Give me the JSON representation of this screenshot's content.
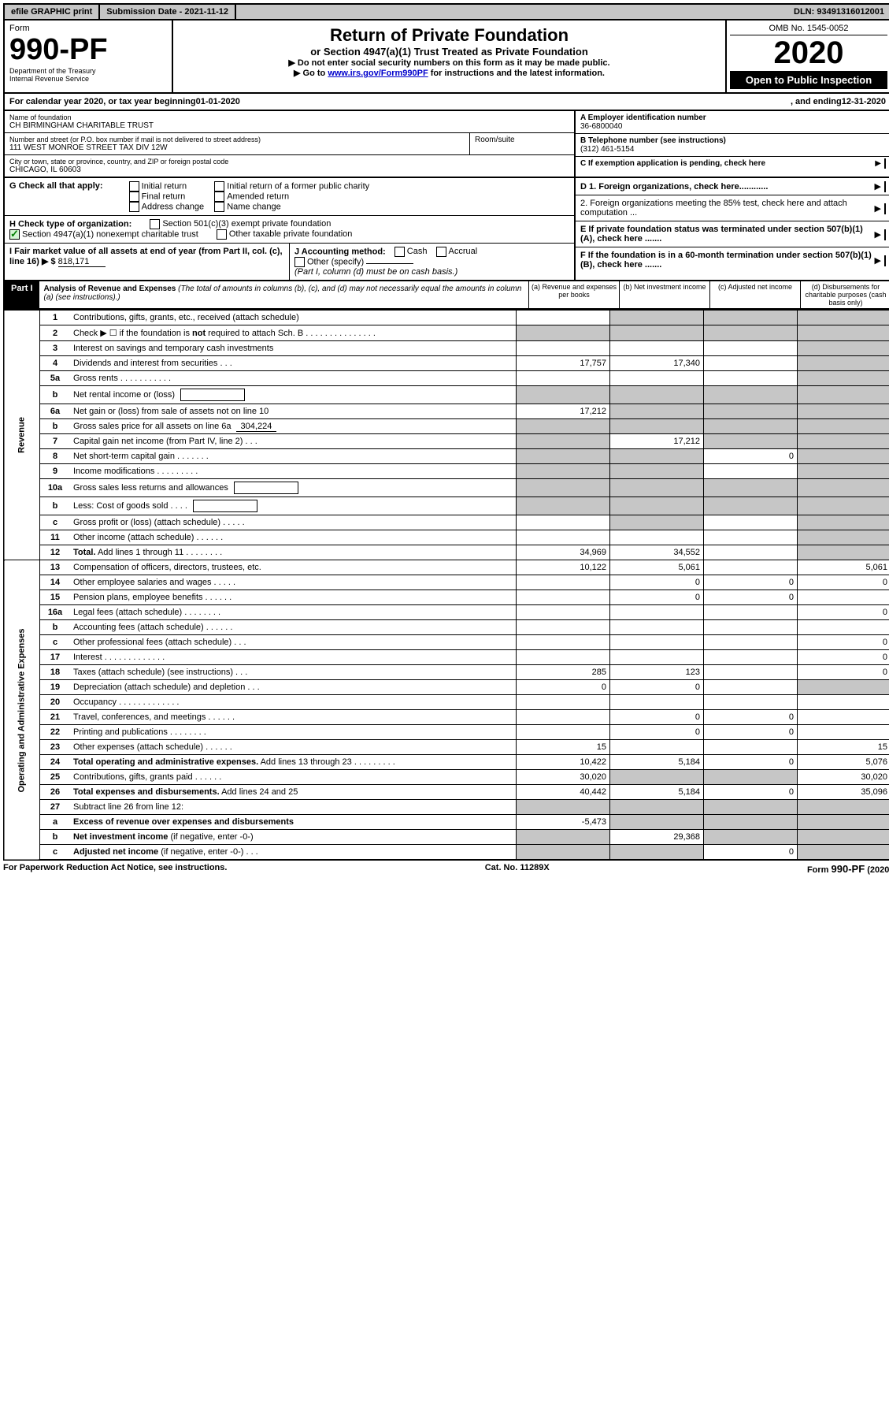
{
  "topbar": {
    "efile": "efile GRAPHIC print",
    "subdate_label": "Submission Date - ",
    "subdate": "2021-11-12",
    "dln_label": "DLN: ",
    "dln": "93491316012001"
  },
  "header": {
    "form_label": "Form",
    "form_number": "990-PF",
    "dept": "Department of the Treasury",
    "irs": "Internal Revenue Service",
    "title": "Return of Private Foundation",
    "subtitle": "or Section 4947(a)(1) Trust Treated as Private Foundation",
    "note1": "▶ Do not enter social security numbers on this form as it may be made public.",
    "note2_pre": "▶ Go to ",
    "note2_link": "www.irs.gov/Form990PF",
    "note2_post": " for instructions and the latest information.",
    "omb": "OMB No. 1545-0052",
    "year": "2020",
    "inspection": "Open to Public Inspection"
  },
  "calyear": {
    "text_pre": "For calendar year 2020, or tax year beginning ",
    "begin": "01-01-2020",
    "text_mid": ", and ending ",
    "end": "12-31-2020"
  },
  "info": {
    "name_label": "Name of foundation",
    "name": "CH BIRMINGHAM CHARITABLE TRUST",
    "addr_label": "Number and street (or P.O. box number if mail is not delivered to street address)",
    "addr": "111 WEST MONROE STREET TAX DIV 12W",
    "room_label": "Room/suite",
    "city_label": "City or town, state or province, country, and ZIP or foreign postal code",
    "city": "CHICAGO, IL  60603",
    "ein_label": "A Employer identification number",
    "ein": "36-6800040",
    "phone_label": "B Telephone number (see instructions)",
    "phone": "(312) 461-5154",
    "c_label": "C If exemption application is pending, check here",
    "d1_label": "D 1. Foreign organizations, check here............",
    "d2_label": "2. Foreign organizations meeting the 85% test, check here and attach computation ...",
    "e_label": "E  If private foundation status was terminated under section 507(b)(1)(A), check here .......",
    "f_label": "F  If the foundation is in a 60-month termination under section 507(b)(1)(B), check here ......."
  },
  "checks": {
    "g_label": "G Check all that apply:",
    "g_items": [
      "Initial return",
      "Final return",
      "Address change",
      "Initial return of a former public charity",
      "Amended return",
      "Name change"
    ],
    "h_label": "H Check type of organization:",
    "h_501c3": "Section 501(c)(3) exempt private foundation",
    "h_4947": "Section 4947(a)(1) nonexempt charitable trust",
    "h_other_tax": "Other taxable private foundation",
    "i_label": "I Fair market value of all assets at end of year (from Part II, col. (c), line 16) ▶ $",
    "i_value": "818,171",
    "j_label": "J Accounting method:",
    "j_cash": "Cash",
    "j_accrual": "Accrual",
    "j_other": "Other (specify)",
    "j_note": "(Part I, column (d) must be on cash basis.)"
  },
  "part1": {
    "label": "Part I",
    "title": "Analysis of Revenue and Expenses",
    "note": " (The total of amounts in columns (b), (c), and (d) may not necessarily equal the amounts in column (a) (see instructions).)",
    "col_a": "(a)  Revenue and expenses per books",
    "col_b": "(b)  Net investment income",
    "col_c": "(c)  Adjusted net income",
    "col_d": "(d)  Disbursements for charitable purposes (cash basis only)"
  },
  "side": {
    "revenue": "Revenue",
    "expenses": "Operating and Administrative Expenses"
  },
  "rows": [
    {
      "n": "1",
      "d": "shade",
      "a": "",
      "b": "shade",
      "c": "shade"
    },
    {
      "n": "2",
      "d": "shade",
      "a": "shade",
      "b": "shade",
      "c": "shade"
    },
    {
      "n": "3",
      "d": "shade",
      "a": "",
      "b": "",
      "c": ""
    },
    {
      "n": "4",
      "d": "shade",
      "a": "17,757",
      "b": "17,340",
      "c": ""
    },
    {
      "n": "5a",
      "d": "shade",
      "a": "",
      "b": "",
      "c": ""
    },
    {
      "n": "b",
      "d": "shade",
      "a": "shade",
      "b": "shade",
      "c": "shade",
      "box": true
    },
    {
      "n": "6a",
      "d": "shade",
      "a": "17,212",
      "b": "shade",
      "c": "shade"
    },
    {
      "n": "b",
      "d": "shade",
      "a": "shade",
      "b": "shade",
      "c": "shade",
      "inline": "304,224"
    },
    {
      "n": "7",
      "d": "shade",
      "a": "shade",
      "b": "17,212",
      "c": "shade"
    },
    {
      "n": "8",
      "d": "shade",
      "a": "shade",
      "b": "shade",
      "c": "0"
    },
    {
      "n": "9",
      "d": "shade",
      "a": "shade",
      "b": "shade",
      "c": ""
    },
    {
      "n": "10a",
      "d": "shade",
      "a": "shade",
      "b": "shade",
      "c": "shade",
      "box": true
    },
    {
      "n": "b",
      "d": "shade",
      "a": "shade",
      "b": "shade",
      "c": "shade",
      "box": true
    },
    {
      "n": "c",
      "d": "shade",
      "a": "",
      "b": "shade",
      "c": ""
    },
    {
      "n": "11",
      "d": "shade",
      "a": "",
      "b": "",
      "c": ""
    },
    {
      "n": "12",
      "d": "shade",
      "a": "34,969",
      "b": "34,552",
      "c": "",
      "bold": true
    }
  ],
  "exp_rows": [
    {
      "n": "13",
      "d": "5,061",
      "a": "10,122",
      "b": "5,061",
      "c": ""
    },
    {
      "n": "14",
      "d": "0",
      "a": "",
      "b": "0",
      "c": "0"
    },
    {
      "n": "15",
      "d": "",
      "a": "",
      "b": "0",
      "c": "0"
    },
    {
      "n": "16a",
      "d": "0",
      "a": "",
      "b": "",
      "c": ""
    },
    {
      "n": "b",
      "d": "",
      "a": "",
      "b": "",
      "c": ""
    },
    {
      "n": "c",
      "d": "0",
      "a": "",
      "b": "",
      "c": ""
    },
    {
      "n": "17",
      "d": "0",
      "a": "",
      "b": "",
      "c": ""
    },
    {
      "n": "18",
      "d": "0",
      "a": "285",
      "b": "123",
      "c": ""
    },
    {
      "n": "19",
      "d": "shade",
      "a": "0",
      "b": "0",
      "c": ""
    },
    {
      "n": "20",
      "d": "",
      "a": "",
      "b": "",
      "c": ""
    },
    {
      "n": "21",
      "d": "",
      "a": "",
      "b": "0",
      "c": "0"
    },
    {
      "n": "22",
      "d": "",
      "a": "",
      "b": "0",
      "c": "0"
    },
    {
      "n": "23",
      "d": "15",
      "a": "15",
      "b": "",
      "c": ""
    },
    {
      "n": "24",
      "d": "5,076",
      "a": "10,422",
      "b": "5,184",
      "c": "0",
      "bold": true
    },
    {
      "n": "25",
      "d": "30,020",
      "a": "30,020",
      "b": "shade",
      "c": "shade"
    },
    {
      "n": "26",
      "d": "35,096",
      "a": "40,442",
      "b": "5,184",
      "c": "0",
      "bold": true
    },
    {
      "n": "27",
      "d": "shade",
      "a": "shade",
      "b": "shade",
      "c": "shade"
    },
    {
      "n": "a",
      "d": "shade",
      "a": "-5,473",
      "b": "shade",
      "c": "shade",
      "bold": true
    },
    {
      "n": "b",
      "d": "shade",
      "a": "shade",
      "b": "29,368",
      "c": "shade",
      "bold": true
    },
    {
      "n": "c",
      "d": "shade",
      "a": "shade",
      "b": "shade",
      "c": "0",
      "bold": true
    }
  ],
  "footer": {
    "left": "For Paperwork Reduction Act Notice, see instructions.",
    "mid": "Cat. No. 11289X",
    "right": "Form 990-PF (2020)"
  }
}
